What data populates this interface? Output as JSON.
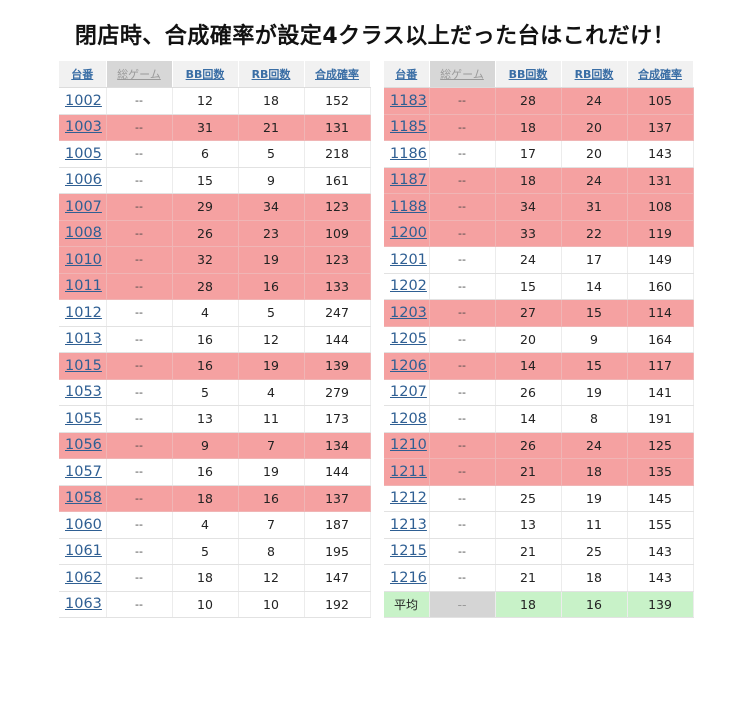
{
  "title": "閉店時、合成確率が設定4クラス以上だった台はこれだけ！",
  "headers": [
    "台番",
    "総ゲーム",
    "BB回数",
    "RB回数",
    "合成確率"
  ],
  "colors": {
    "highlight": "#f5a1a1",
    "average": "#c8f2c8",
    "link": "#2f5f93"
  },
  "left_rows": [
    {
      "no": "1002",
      "games": "--",
      "bb": "12",
      "rb": "18",
      "rate": "152",
      "hl": false
    },
    {
      "no": "1003",
      "games": "--",
      "bb": "31",
      "rb": "21",
      "rate": "131",
      "hl": true
    },
    {
      "no": "1005",
      "games": "--",
      "bb": "6",
      "rb": "5",
      "rate": "218",
      "hl": false
    },
    {
      "no": "1006",
      "games": "--",
      "bb": "15",
      "rb": "9",
      "rate": "161",
      "hl": false
    },
    {
      "no": "1007",
      "games": "--",
      "bb": "29",
      "rb": "34",
      "rate": "123",
      "hl": true
    },
    {
      "no": "1008",
      "games": "--",
      "bb": "26",
      "rb": "23",
      "rate": "109",
      "hl": true
    },
    {
      "no": "1010",
      "games": "--",
      "bb": "32",
      "rb": "19",
      "rate": "123",
      "hl": true
    },
    {
      "no": "1011",
      "games": "--",
      "bb": "28",
      "rb": "16",
      "rate": "133",
      "hl": true
    },
    {
      "no": "1012",
      "games": "--",
      "bb": "4",
      "rb": "5",
      "rate": "247",
      "hl": false
    },
    {
      "no": "1013",
      "games": "--",
      "bb": "16",
      "rb": "12",
      "rate": "144",
      "hl": false
    },
    {
      "no": "1015",
      "games": "--",
      "bb": "16",
      "rb": "19",
      "rate": "139",
      "hl": true
    },
    {
      "no": "1053",
      "games": "--",
      "bb": "5",
      "rb": "4",
      "rate": "279",
      "hl": false
    },
    {
      "no": "1055",
      "games": "--",
      "bb": "13",
      "rb": "11",
      "rate": "173",
      "hl": false
    },
    {
      "no": "1056",
      "games": "--",
      "bb": "9",
      "rb": "7",
      "rate": "134",
      "hl": true
    },
    {
      "no": "1057",
      "games": "--",
      "bb": "16",
      "rb": "19",
      "rate": "144",
      "hl": false
    },
    {
      "no": "1058",
      "games": "--",
      "bb": "18",
      "rb": "16",
      "rate": "137",
      "hl": true
    },
    {
      "no": "1060",
      "games": "--",
      "bb": "4",
      "rb": "7",
      "rate": "187",
      "hl": false
    },
    {
      "no": "1061",
      "games": "--",
      "bb": "5",
      "rb": "8",
      "rate": "195",
      "hl": false
    },
    {
      "no": "1062",
      "games": "--",
      "bb": "18",
      "rb": "12",
      "rate": "147",
      "hl": false
    },
    {
      "no": "1063",
      "games": "--",
      "bb": "10",
      "rb": "10",
      "rate": "192",
      "hl": false
    }
  ],
  "right_rows": [
    {
      "no": "1183",
      "games": "--",
      "bb": "28",
      "rb": "24",
      "rate": "105",
      "hl": true
    },
    {
      "no": "1185",
      "games": "--",
      "bb": "18",
      "rb": "20",
      "rate": "137",
      "hl": true
    },
    {
      "no": "1186",
      "games": "--",
      "bb": "17",
      "rb": "20",
      "rate": "143",
      "hl": false
    },
    {
      "no": "1187",
      "games": "--",
      "bb": "18",
      "rb": "24",
      "rate": "131",
      "hl": true
    },
    {
      "no": "1188",
      "games": "--",
      "bb": "34",
      "rb": "31",
      "rate": "108",
      "hl": true
    },
    {
      "no": "1200",
      "games": "--",
      "bb": "33",
      "rb": "22",
      "rate": "119",
      "hl": true
    },
    {
      "no": "1201",
      "games": "--",
      "bb": "24",
      "rb": "17",
      "rate": "149",
      "hl": false
    },
    {
      "no": "1202",
      "games": "--",
      "bb": "15",
      "rb": "14",
      "rate": "160",
      "hl": false
    },
    {
      "no": "1203",
      "games": "--",
      "bb": "27",
      "rb": "15",
      "rate": "114",
      "hl": true
    },
    {
      "no": "1205",
      "games": "--",
      "bb": "20",
      "rb": "9",
      "rate": "164",
      "hl": false
    },
    {
      "no": "1206",
      "games": "--",
      "bb": "14",
      "rb": "15",
      "rate": "117",
      "hl": true
    },
    {
      "no": "1207",
      "games": "--",
      "bb": "26",
      "rb": "19",
      "rate": "141",
      "hl": false
    },
    {
      "no": "1208",
      "games": "--",
      "bb": "14",
      "rb": "8",
      "rate": "191",
      "hl": false
    },
    {
      "no": "1210",
      "games": "--",
      "bb": "26",
      "rb": "24",
      "rate": "125",
      "hl": true
    },
    {
      "no": "1211",
      "games": "--",
      "bb": "21",
      "rb": "18",
      "rate": "135",
      "hl": true
    },
    {
      "no": "1212",
      "games": "--",
      "bb": "25",
      "rb": "19",
      "rate": "145",
      "hl": false
    },
    {
      "no": "1213",
      "games": "--",
      "bb": "13",
      "rb": "11",
      "rate": "155",
      "hl": false
    },
    {
      "no": "1215",
      "games": "--",
      "bb": "21",
      "rb": "25",
      "rate": "143",
      "hl": false
    },
    {
      "no": "1216",
      "games": "--",
      "bb": "21",
      "rb": "18",
      "rate": "143",
      "hl": false
    }
  ],
  "average_row": {
    "label": "平均",
    "games": "--",
    "bb": "18",
    "rb": "16",
    "rate": "139"
  }
}
